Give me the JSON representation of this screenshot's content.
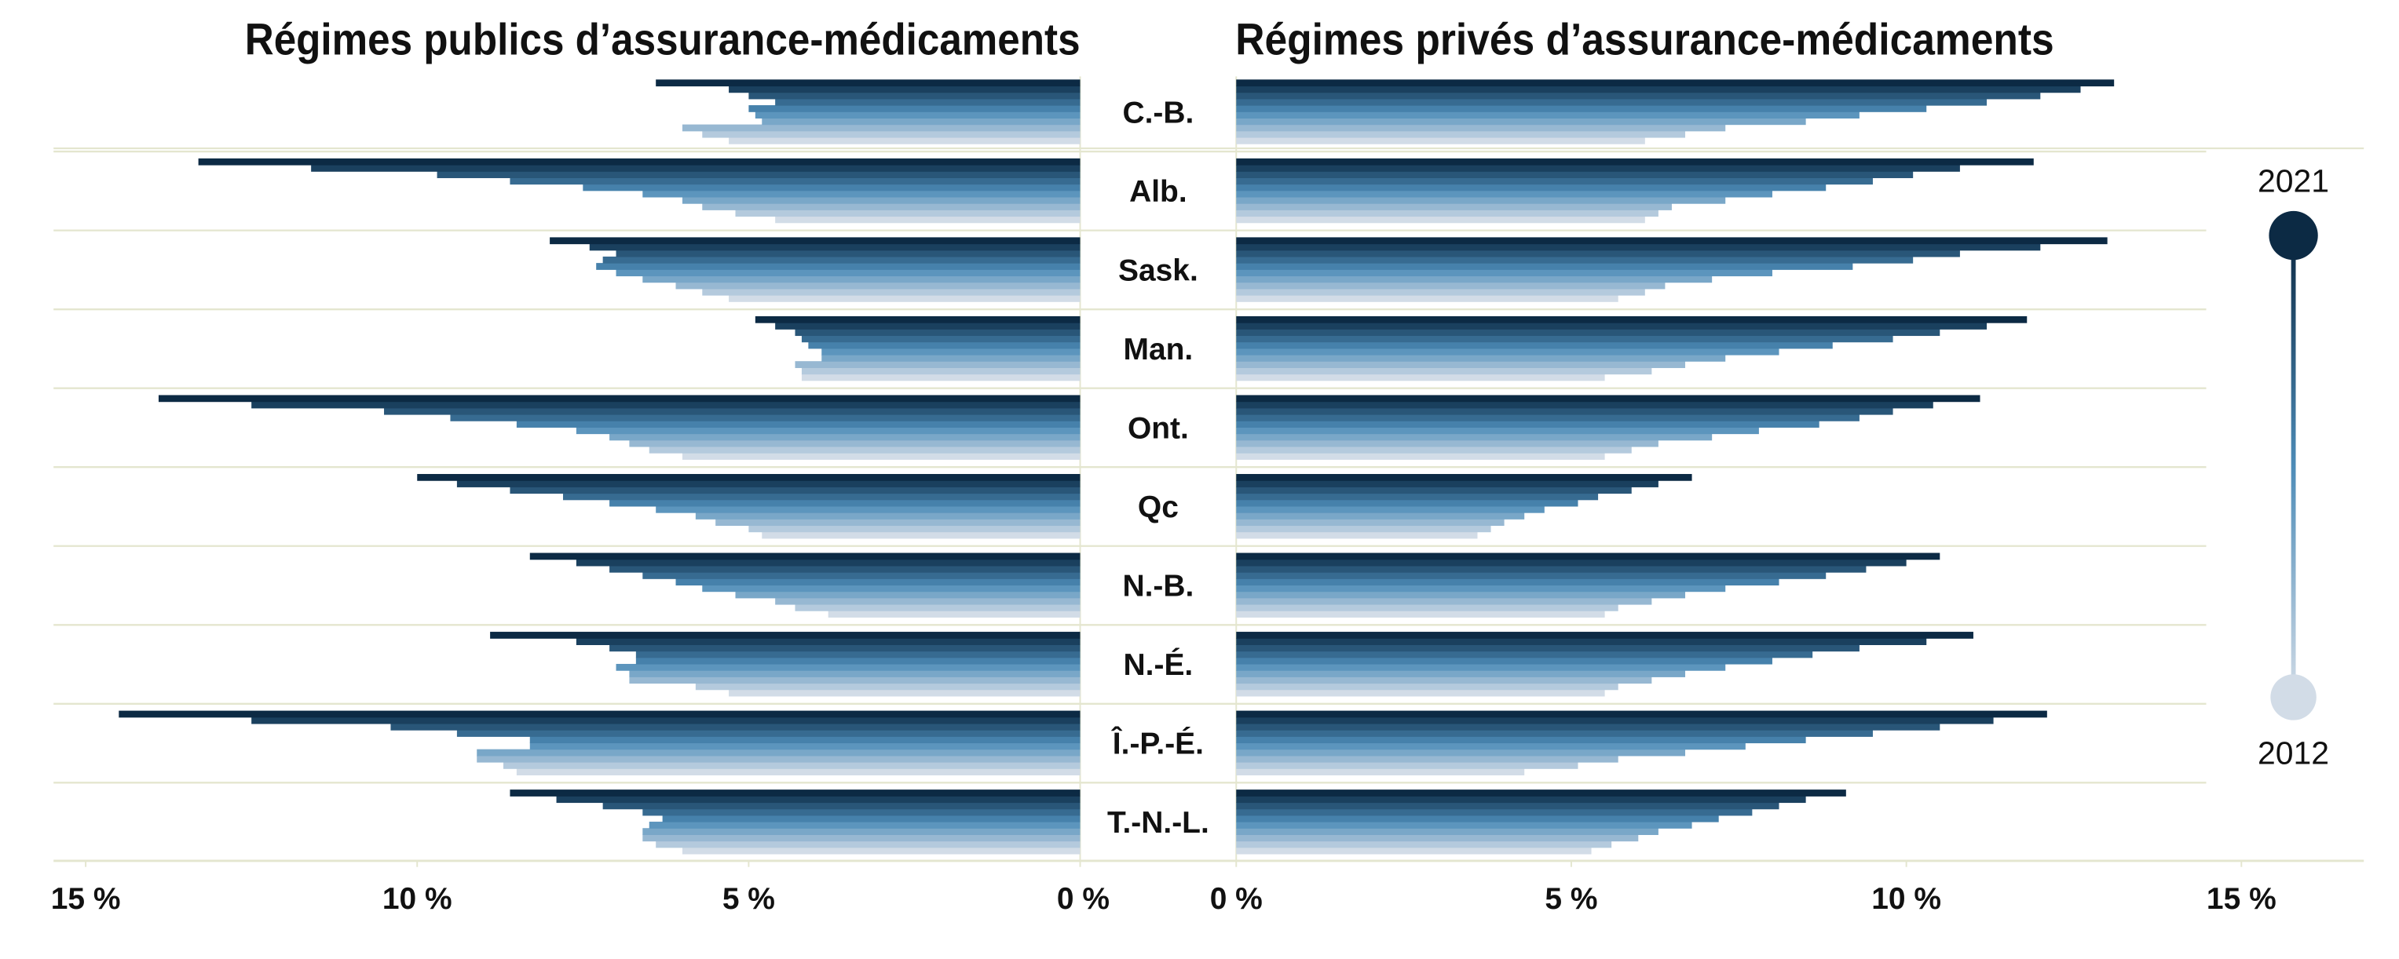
{
  "chart_data": {
    "type": "butterfly-bar",
    "categories": [
      "C.-B.",
      "Alb.",
      "Sask.",
      "Man.",
      "Ont.",
      "Qc",
      "N.-B.",
      "N.-É.",
      "Î.-P.-É.",
      "T.-N.-L."
    ],
    "color_stops": [
      "#d2dce7",
      "#4d8cb8",
      "#0c2a44"
    ],
    "legend": {
      "top": "2021",
      "bottom": "2012"
    },
    "panels": [
      {
        "title": "Régimes publics d’assurance-médicaments",
        "direction": "left",
        "xlim": [
          0,
          15
        ],
        "xticks": [
          {
            "value": 0,
            "label": "0 %"
          },
          {
            "value": 5,
            "label": "5 %"
          },
          {
            "value": 10,
            "label": "10 %"
          },
          {
            "value": 15,
            "label": "15 %"
          }
        ],
        "values": [
          [
            5.3,
            5.7,
            6.0,
            4.8,
            4.9,
            5.0,
            4.6,
            5.0,
            5.3,
            6.4
          ],
          [
            4.6,
            5.2,
            5.7,
            6.0,
            6.6,
            7.5,
            8.6,
            9.7,
            11.6,
            13.3
          ],
          [
            5.3,
            5.7,
            6.1,
            6.6,
            7.0,
            7.3,
            7.2,
            7.0,
            7.4,
            8.0
          ],
          [
            4.2,
            4.2,
            4.3,
            3.9,
            3.9,
            4.1,
            4.2,
            4.3,
            4.6,
            4.9
          ],
          [
            6.0,
            6.5,
            6.8,
            7.1,
            7.6,
            8.5,
            9.5,
            10.5,
            12.5,
            13.9
          ],
          [
            4.8,
            5.0,
            5.5,
            5.8,
            6.4,
            7.1,
            7.8,
            8.6,
            9.4,
            10.0
          ],
          [
            3.8,
            4.3,
            4.6,
            5.2,
            5.7,
            6.1,
            6.6,
            7.1,
            7.6,
            8.3
          ],
          [
            5.3,
            5.8,
            6.8,
            6.8,
            7.0,
            6.7,
            6.7,
            7.1,
            7.6,
            8.9
          ],
          [
            8.5,
            8.7,
            9.1,
            9.1,
            8.3,
            8.3,
            9.4,
            10.4,
            12.5,
            14.5
          ],
          [
            6.0,
            6.4,
            6.6,
            6.6,
            6.5,
            6.3,
            6.6,
            7.2,
            7.9,
            8.6
          ]
        ]
      },
      {
        "title": "Régimes privés d’assurance-médicaments",
        "direction": "right",
        "xlim": [
          0,
          15
        ],
        "xticks": [
          {
            "value": 0,
            "label": "0 %"
          },
          {
            "value": 5,
            "label": "5 %"
          },
          {
            "value": 10,
            "label": "10 %"
          },
          {
            "value": 15,
            "label": "15 %"
          }
        ],
        "values": [
          [
            6.1,
            6.7,
            7.3,
            8.5,
            9.3,
            10.3,
            11.2,
            12.0,
            12.6,
            13.1
          ],
          [
            6.1,
            6.3,
            6.5,
            7.3,
            8.0,
            8.8,
            9.5,
            10.1,
            10.8,
            11.9
          ],
          [
            5.7,
            6.1,
            6.4,
            7.1,
            8.0,
            9.2,
            10.1,
            10.8,
            12.0,
            13.0
          ],
          [
            5.5,
            6.2,
            6.7,
            7.3,
            8.1,
            8.9,
            9.8,
            10.5,
            11.2,
            11.8
          ],
          [
            5.5,
            5.9,
            6.3,
            7.1,
            7.8,
            8.7,
            9.3,
            9.8,
            10.4,
            11.1
          ],
          [
            3.6,
            3.8,
            4.0,
            4.3,
            4.6,
            5.1,
            5.4,
            5.9,
            6.3,
            6.8
          ],
          [
            5.5,
            5.7,
            6.2,
            6.7,
            7.3,
            8.1,
            8.8,
            9.4,
            10.0,
            10.5
          ],
          [
            5.5,
            5.7,
            6.2,
            6.7,
            7.3,
            8.0,
            8.6,
            9.3,
            10.3,
            11.0
          ],
          [
            4.3,
            5.1,
            5.7,
            6.7,
            7.6,
            8.5,
            9.5,
            10.5,
            11.3,
            12.1
          ],
          [
            5.3,
            5.6,
            6.0,
            6.3,
            6.8,
            7.2,
            7.7,
            8.1,
            8.5,
            9.1
          ]
        ]
      }
    ]
  }
}
